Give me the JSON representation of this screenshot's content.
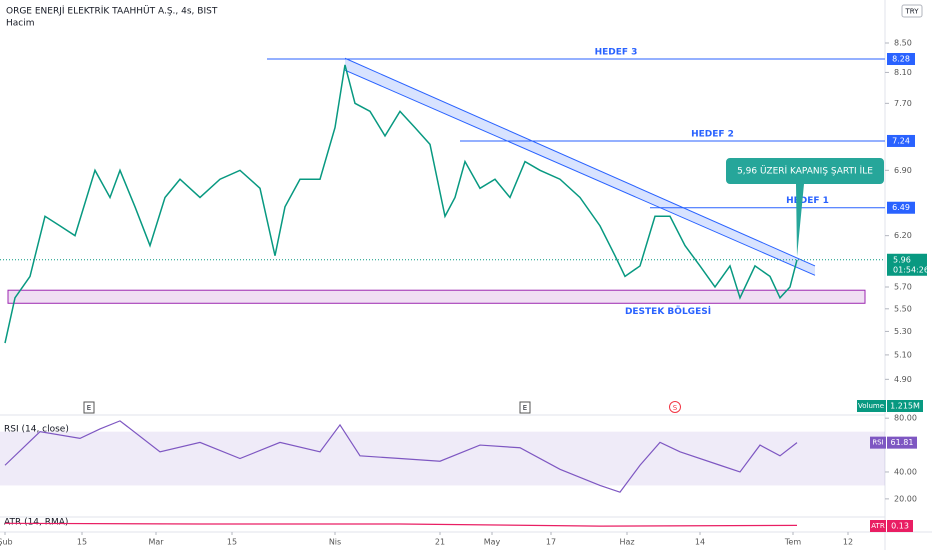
{
  "chart_data": {
    "type": "line",
    "title": "ORGE ENERJİ ELEKTRİK TAAHHÜT A.Ş., 4s, BIST",
    "subtitle": "Hacim",
    "currency": "TRY",
    "log_scale": true,
    "color": "#089981",
    "xlim": [
      0,
      177
    ],
    "ylim": [
      4.66,
      9.12
    ],
    "xticks": [
      {
        "value": 1,
        "label": "Şub"
      },
      {
        "value": 16.4,
        "label": "15"
      },
      {
        "value": 31.2,
        "label": "Mar"
      },
      {
        "value": 46.4,
        "label": "15"
      },
      {
        "value": 67,
        "label": "Nis"
      },
      {
        "value": 88,
        "label": "21"
      },
      {
        "value": 98.4,
        "label": "May"
      },
      {
        "value": 110.2,
        "label": "17"
      },
      {
        "value": 125.4,
        "label": "Haz"
      },
      {
        "value": 140,
        "label": "14"
      },
      {
        "value": 158.6,
        "label": "Tem"
      },
      {
        "value": 169.6,
        "label": "12"
      }
    ],
    "yticks": [
      {
        "value": 8.5,
        "label": "8.50"
      },
      {
        "value": 8.1,
        "label": "8.10"
      },
      {
        "value": 7.7,
        "label": "7.70"
      },
      {
        "value": 6.9,
        "label": "6.90"
      },
      {
        "value": 6.2,
        "label": "6.20"
      },
      {
        "value": 5.7,
        "label": "5.70"
      },
      {
        "value": 5.5,
        "label": "5.50"
      },
      {
        "value": 5.3,
        "label": "5.30"
      },
      {
        "value": 5.1,
        "label": "5.10"
      },
      {
        "value": 4.9,
        "label": "4.90"
      }
    ],
    "x": [
      1,
      3,
      6,
      9,
      12,
      15,
      19,
      22,
      24,
      27,
      30,
      33,
      36,
      40,
      44,
      48,
      52,
      55,
      57,
      60,
      64,
      67,
      69,
      71,
      74,
      77,
      80,
      83,
      86,
      89,
      91,
      93,
      96,
      99,
      102,
      105,
      108,
      112,
      116,
      120,
      123,
      125,
      128,
      131,
      134,
      137,
      140,
      143,
      146,
      148,
      151,
      154,
      156,
      158,
      159.4
    ],
    "values": [
      5.2,
      5.6,
      5.8,
      6.4,
      6.3,
      6.2,
      6.9,
      6.6,
      6.9,
      6.5,
      6.1,
      6.6,
      6.8,
      6.6,
      6.8,
      6.9,
      6.7,
      6.0,
      6.5,
      6.8,
      6.8,
      7.4,
      8.2,
      7.7,
      7.6,
      7.3,
      7.6,
      7.4,
      7.2,
      6.4,
      6.6,
      7.0,
      6.7,
      6.8,
      6.6,
      7.0,
      6.9,
      6.8,
      6.6,
      6.3,
      6.0,
      5.8,
      5.9,
      6.4,
      6.4,
      6.1,
      5.9,
      5.7,
      5.9,
      5.6,
      5.9,
      5.8,
      5.6,
      5.7,
      5.96
    ],
    "levels": [
      {
        "name": "HEDEF 3",
        "value": 8.28,
        "start": 53.4
      },
      {
        "name": "HEDEF 2",
        "value": 7.24,
        "start": 92
      },
      {
        "name": "HEDEF 1",
        "value": 6.49,
        "start": 130
      }
    ],
    "last_price": {
      "value": 5.96,
      "countdown": "01:54:26"
    },
    "support_zone": {
      "name": "DESTEK BÖLGESİ",
      "range": [
        5.55,
        5.67
      ]
    },
    "channel": {
      "x": [
        69,
        163
      ],
      "upper": [
        8.29,
        5.9
      ],
      "lower": [
        8.13,
        5.81
      ]
    },
    "annotation": "5,96 ÜZERİ KAPANIŞ ŞARTI İLE",
    "events": [
      "E",
      "E",
      "S"
    ],
    "volume": {
      "name": "Volume",
      "value_label": "1.215M"
    },
    "rsi": {
      "title": "RSI (14, close)",
      "name": "RSI",
      "color": "#7e57c2",
      "ylim": [
        8,
        82
      ],
      "band": [
        30,
        70
      ],
      "yticks": [
        {
          "value": 80,
          "label": "80.00"
        },
        {
          "value": 40,
          "label": "40.00"
        },
        {
          "value": 20,
          "label": "20.00"
        }
      ],
      "x": [
        1,
        8,
        16,
        20,
        24,
        32,
        40,
        48,
        56,
        64,
        68,
        72,
        80,
        88,
        96,
        104,
        112,
        120,
        124,
        128,
        132,
        136,
        144,
        148,
        152,
        156,
        159.4
      ],
      "values": [
        45,
        70,
        65,
        72,
        78,
        55,
        62,
        50,
        62,
        55,
        75,
        52,
        50,
        48,
        60,
        58,
        42,
        30,
        25,
        45,
        62,
        55,
        45,
        40,
        60,
        52,
        61.81
      ]
    },
    "atr": {
      "title": "ATR (14, RMA)",
      "name": "ATR",
      "color": "#e91e63",
      "ylim": [
        0.05,
        0.25
      ],
      "x": [
        1,
        40,
        80,
        120,
        159.4
      ],
      "values": [
        0.16,
        0.15,
        0.15,
        0.12,
        0.13
      ]
    }
  }
}
